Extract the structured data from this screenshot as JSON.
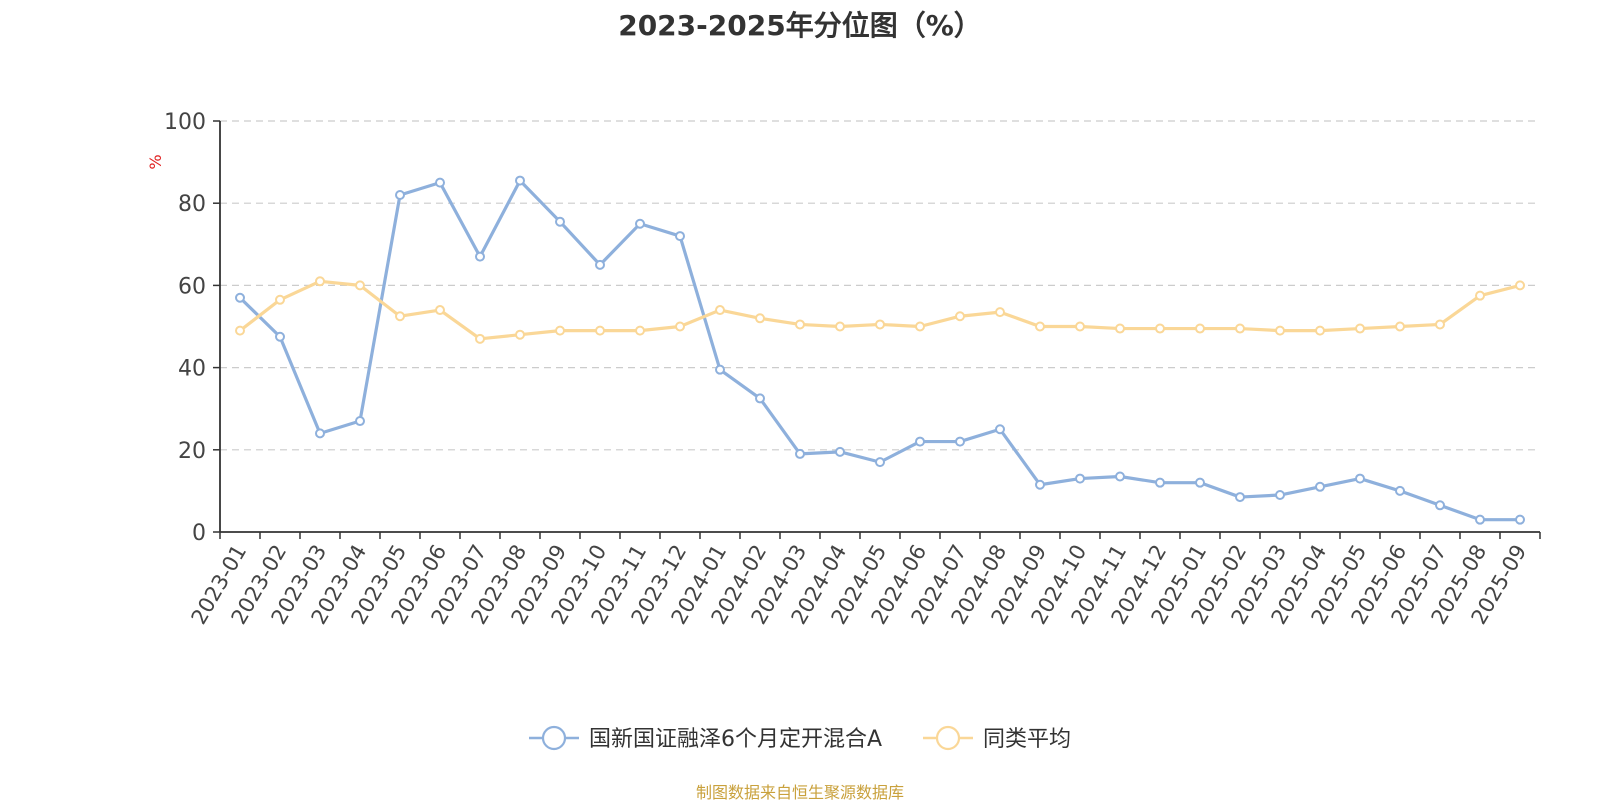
{
  "title": "2023-2025年分位图（%）",
  "source": "制图数据来自恒生聚源数据库",
  "chart_data": {
    "type": "line",
    "title": "2023-2025年分位图（%）",
    "ylabel": "%",
    "xlabel": "",
    "ylim": [
      0,
      100
    ],
    "yticks": [
      0,
      20,
      40,
      60,
      80,
      100
    ],
    "grid": true,
    "legend_position": "bottom-center",
    "categories": [
      "2023-01",
      "2023-02",
      "2023-03",
      "2023-04",
      "2023-05",
      "2023-06",
      "2023-07",
      "2023-08",
      "2023-09",
      "2023-10",
      "2023-11",
      "2023-12",
      "2024-01",
      "2024-02",
      "2024-03",
      "2024-04",
      "2024-05",
      "2024-06",
      "2024-07",
      "2024-08",
      "2024-09",
      "2024-10",
      "2024-11",
      "2024-12",
      "2025-01",
      "2025-02",
      "2025-03",
      "2025-04",
      "2025-05",
      "2025-06",
      "2025-07",
      "2025-08",
      "2025-09"
    ],
    "series": [
      {
        "name": "国新国证融泽6个月定开混合A",
        "color": "#8eb0dc",
        "values": [
          57.0,
          47.5,
          24.0,
          27.0,
          82.0,
          85.0,
          67.0,
          85.5,
          75.5,
          65.0,
          75.0,
          72.0,
          39.5,
          32.5,
          19.0,
          19.5,
          17.0,
          22.0,
          22.0,
          25.0,
          11.5,
          13.0,
          13.5,
          12.0,
          12.0,
          8.5,
          9.0,
          11.0,
          13.0,
          10.0,
          6.5,
          3.0,
          3.0
        ]
      },
      {
        "name": "同类平均",
        "color": "#fad797",
        "values": [
          49.0,
          56.5,
          61.0,
          60.0,
          52.5,
          54.0,
          47.0,
          48.0,
          49.0,
          49.0,
          49.0,
          50.0,
          54.0,
          52.0,
          50.5,
          50.0,
          50.5,
          50.0,
          52.5,
          53.5,
          50.0,
          50.0,
          49.5,
          49.5,
          49.5,
          49.5,
          49.0,
          49.0,
          49.5,
          50.0,
          50.5,
          57.5,
          60.0
        ]
      }
    ]
  }
}
